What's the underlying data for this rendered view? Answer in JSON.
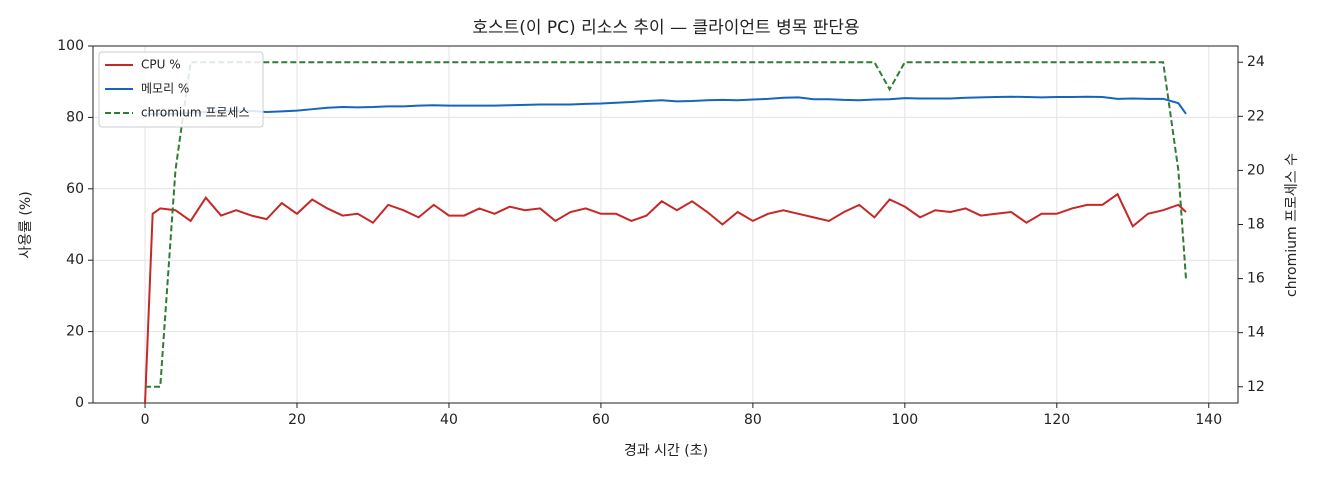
{
  "chart_data": {
    "type": "line",
    "title": "호스트(이 PC) 리소스 추이 — 클라이언트 병목 판단용",
    "x_label": "경과 시간 (초)",
    "y_label": "사용률 (%)",
    "y2_label": "chromium 프로세스 수",
    "x": [
      0,
      1,
      2,
      4,
      6,
      8,
      10,
      12,
      14,
      16,
      18,
      20,
      22,
      24,
      26,
      28,
      30,
      32,
      34,
      36,
      38,
      40,
      42,
      44,
      46,
      48,
      50,
      52,
      54,
      56,
      58,
      60,
      62,
      64,
      66,
      68,
      70,
      72,
      74,
      76,
      78,
      80,
      82,
      84,
      86,
      88,
      90,
      92,
      94,
      96,
      98,
      100,
      102,
      104,
      106,
      108,
      110,
      112,
      114,
      116,
      118,
      120,
      122,
      124,
      126,
      128,
      130,
      132,
      134,
      136,
      137
    ],
    "series": [
      {
        "name": "CPU %",
        "color": "#c62828",
        "linestyle": "solid",
        "values": [
          0,
          53,
          54.5,
          54,
          51,
          57.5,
          52.5,
          54,
          52.5,
          51.5,
          56,
          53,
          57,
          54.5,
          52.5,
          53,
          50.5,
          55.5,
          54,
          52,
          55.5,
          52.5,
          52.5,
          54.5,
          53,
          55,
          54,
          54.5,
          51,
          53.5,
          54.5,
          53,
          53,
          51,
          52.5,
          56.5,
          54,
          56.5,
          53.5,
          50,
          53.5,
          51,
          53,
          54,
          53,
          52,
          51,
          53.5,
          55.5,
          52,
          57,
          55,
          52,
          54,
          53.5,
          54.5,
          52.5,
          53,
          53.5,
          50.5,
          53,
          53,
          54.5,
          55.5,
          55.5,
          58.5,
          49.5,
          53,
          54,
          55.5,
          53.5
        ]
      },
      {
        "name": "메모리 %",
        "color": "#1565c0",
        "linestyle": "solid",
        "values": [
          81,
          81,
          81,
          81,
          81.3,
          81.5,
          81.7,
          81.8,
          81.8,
          81.5,
          81.7,
          81.9,
          82.3,
          82.7,
          82.9,
          82.8,
          82.9,
          83.1,
          83.1,
          83.3,
          83.4,
          83.3,
          83.3,
          83.3,
          83.3,
          83.4,
          83.5,
          83.6,
          83.6,
          83.6,
          83.8,
          83.9,
          84.1,
          84.3,
          84.6,
          84.8,
          84.5,
          84.6,
          84.8,
          84.9,
          84.8,
          85,
          85.2,
          85.5,
          85.6,
          85.1,
          85.1,
          84.9,
          84.8,
          85,
          85.1,
          85.4,
          85.3,
          85.3,
          85.3,
          85.5,
          85.6,
          85.7,
          85.8,
          85.7,
          85.6,
          85.7,
          85.7,
          85.8,
          85.7,
          85.2,
          85.3,
          85.2,
          85.2,
          84,
          81
        ]
      },
      {
        "name": "chromium 프로세스",
        "color": "#2e7d32",
        "linestyle": "dashed",
        "axis": "y2",
        "values": [
          12,
          12,
          12,
          20,
          24,
          24,
          24,
          24,
          24,
          24,
          24,
          24,
          24,
          24,
          24,
          24,
          24,
          24,
          24,
          24,
          24,
          24,
          24,
          24,
          24,
          24,
          24,
          24,
          24,
          24,
          24,
          24,
          24,
          24,
          24,
          24,
          24,
          24,
          24,
          24,
          24,
          24,
          24,
          24,
          24,
          24,
          24,
          24,
          24,
          24,
          23,
          24,
          24,
          24,
          24,
          24,
          24,
          24,
          24,
          24,
          24,
          24,
          24,
          24,
          24,
          24,
          24,
          24,
          24,
          20,
          16
        ]
      }
    ],
    "xlim": [
      -6.85,
      143.85
    ],
    "xticks": [
      0,
      20,
      40,
      60,
      80,
      100,
      120,
      140
    ],
    "ylim": [
      0,
      100
    ],
    "yticks": [
      0,
      20,
      40,
      60,
      80,
      100
    ],
    "y2lim": [
      11.4,
      24.6
    ],
    "y2ticks": [
      12,
      14,
      16,
      18,
      20,
      22,
      24
    ],
    "grid": true,
    "legend": "upper left"
  }
}
